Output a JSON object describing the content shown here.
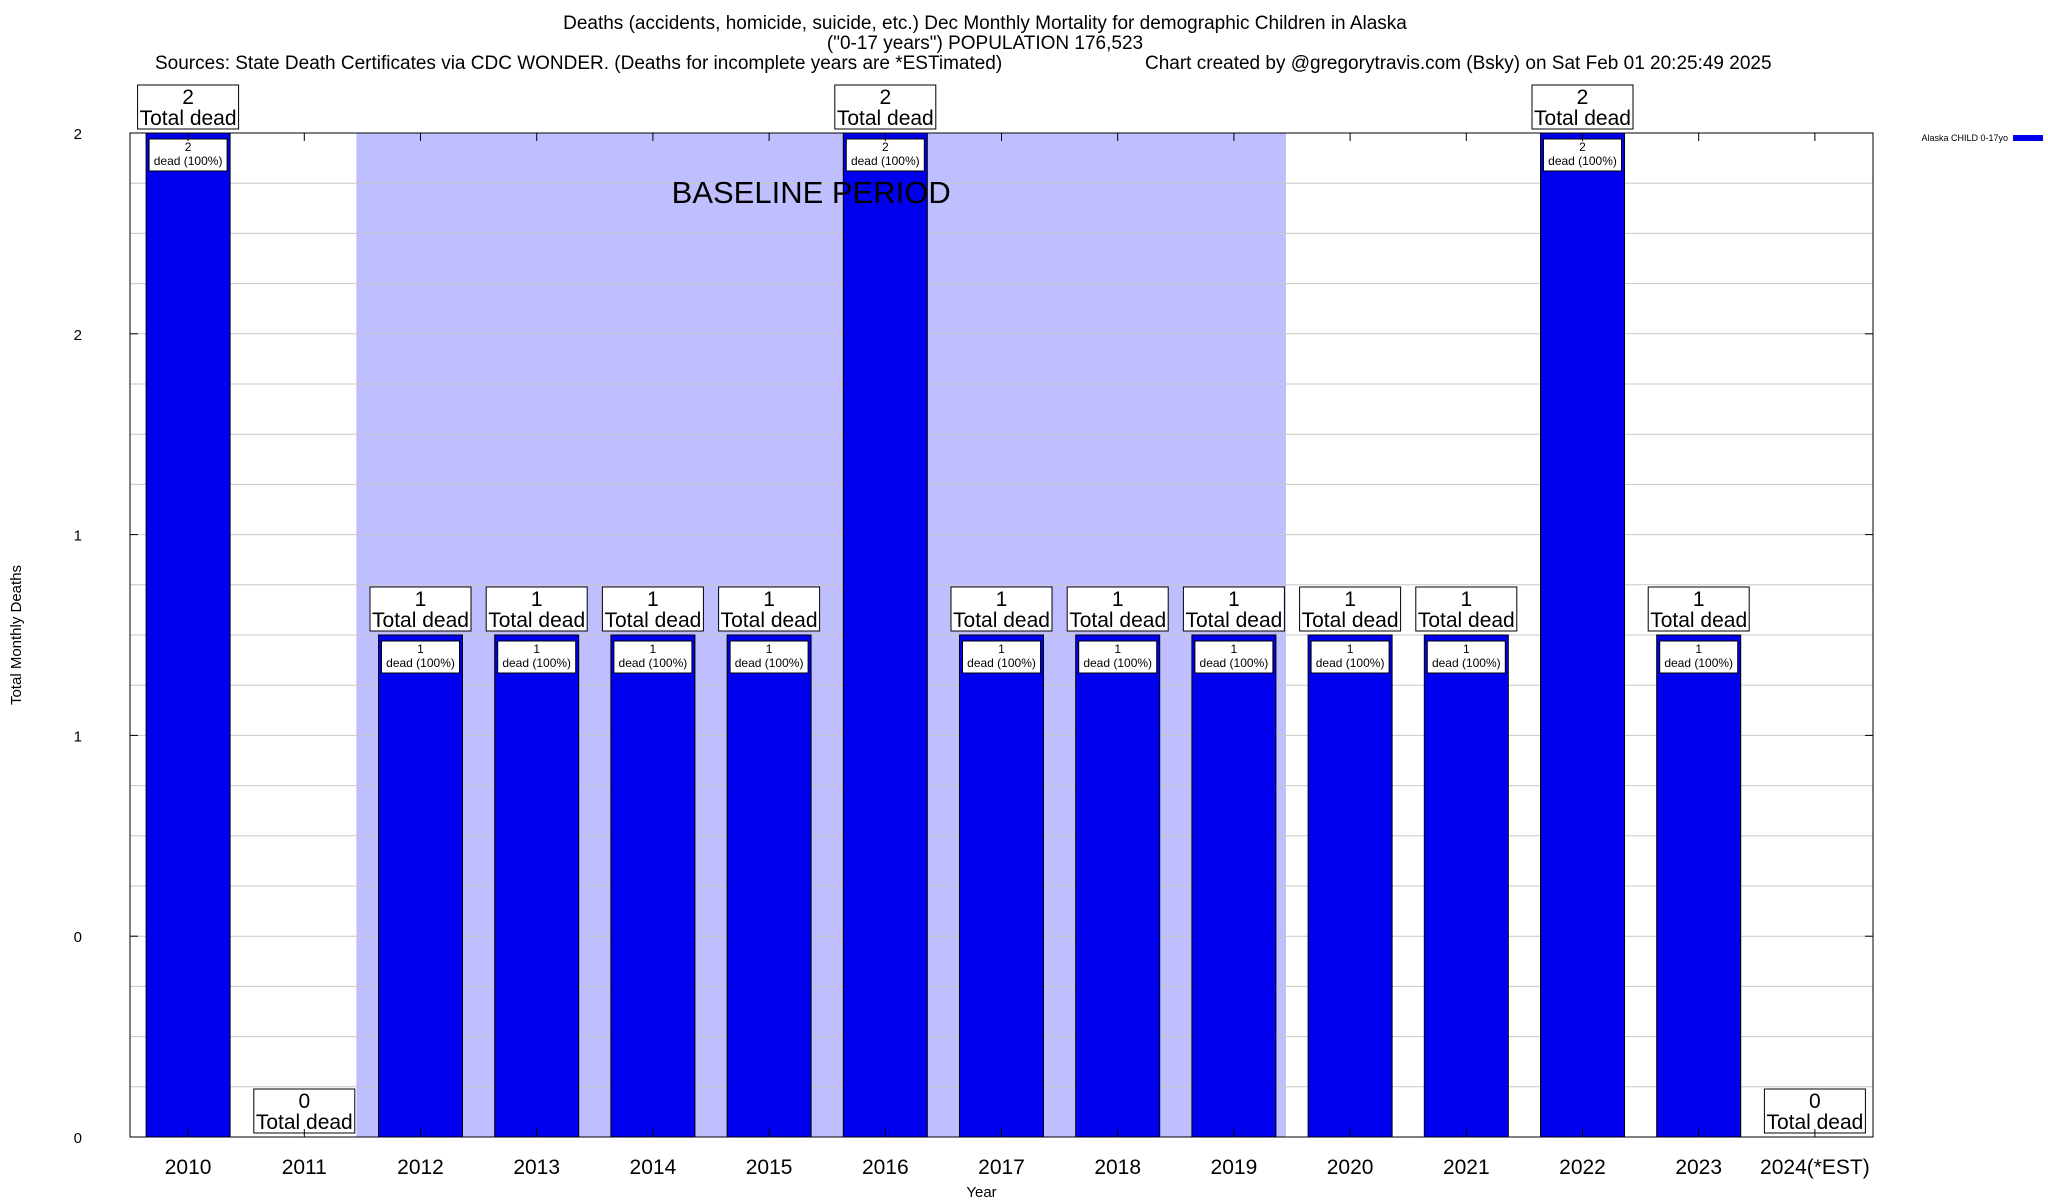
{
  "header": {
    "title": "Deaths (accidents, homicide, suicide, etc.) Dec Monthly Mortality for demographic Children in Alaska",
    "subtitle": "(\"0-17 years\") POPULATION 176,523",
    "sources": "Sources: State Death Certificates via CDC WONDER. (Deaths for incomplete years are *ESTimated)",
    "credit": "Chart created by @gregorytravis.com (Bsky) on Sat Feb 01 20:25:49 2025"
  },
  "chart_data": {
    "type": "bar",
    "xlabel": "Year",
    "ylabel": "Total Monthly Deaths",
    "categories": [
      "2010",
      "2011",
      "2012",
      "2013",
      "2014",
      "2015",
      "2016",
      "2017",
      "2018",
      "2019",
      "2020",
      "2021",
      "2022",
      "2023",
      "2024(*EST)"
    ],
    "series": [
      {
        "name": "Alaska CHILD 0-17yo",
        "color": "#0000ee",
        "values": [
          2,
          0,
          1,
          1,
          1,
          1,
          2,
          1,
          1,
          1,
          1,
          1,
          2,
          1,
          0
        ]
      }
    ],
    "ylim": [
      0,
      2
    ],
    "y_tick_labels": [
      "0",
      "0",
      "1",
      "1",
      "2",
      "2"
    ],
    "total_label_suffix": "Total dead",
    "bar_label_suffix": "dead (100%)",
    "baseline_period": {
      "label": "BASELINE PERIOD",
      "from": "2012",
      "to": "2019",
      "color": "#bfbfff"
    },
    "grid": true,
    "legend_position": "top-right"
  }
}
